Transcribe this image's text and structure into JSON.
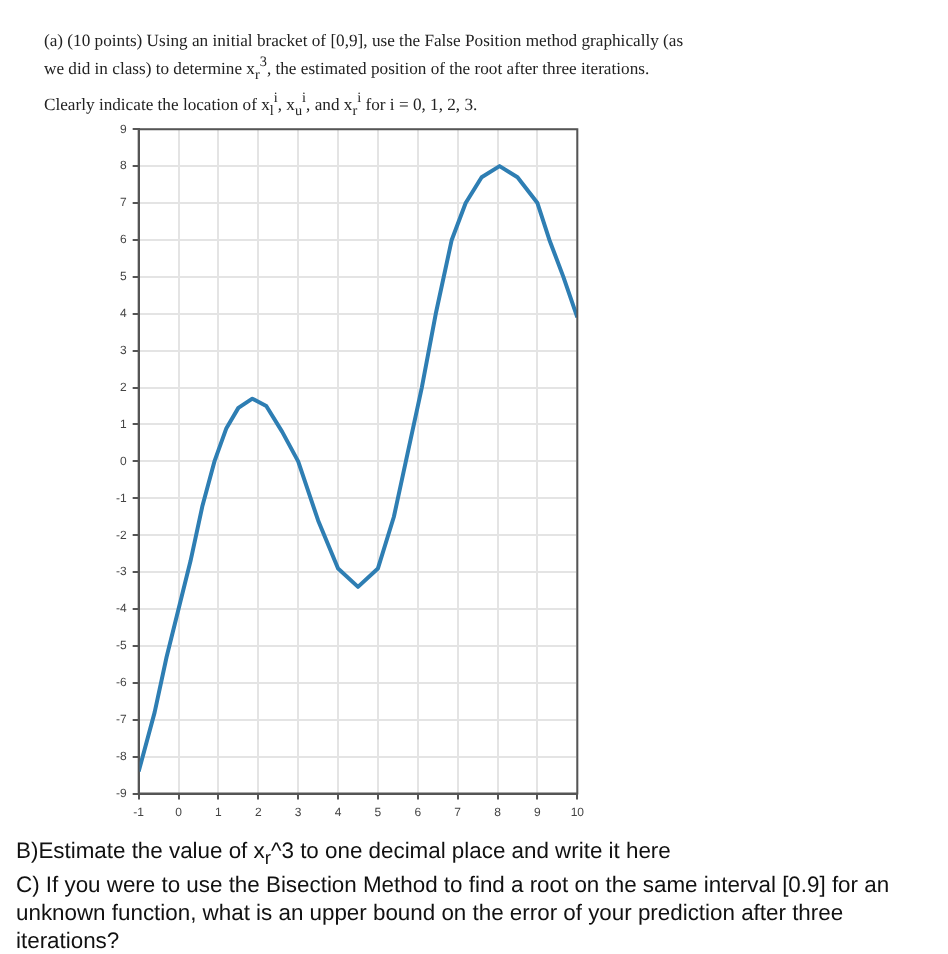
{
  "chart_data": {
    "type": "line",
    "title": "(a) (10 points) Using an initial bracket of [0,9], use the False Position method graphically (as we did in class) to determine x$_{r}$$^{3}$, the estimated position of the root after three iterations. Clearly indicate the location of x$_{l}$$^{i}$, x$_{u}$$^{i}$, and x$_{r}$$^{i}$ for i = 0, 1, 2, 3.",
    "x": [
      -1,
      -0.6,
      -0.3,
      0,
      0.3,
      0.6,
      0.9,
      1.2,
      1.5,
      1.85,
      2.2,
      2.6,
      3,
      3.5,
      4,
      4.5,
      5,
      5.4,
      5.7,
      6.1,
      6.45,
      6.85,
      7.2,
      7.6,
      8.05,
      8.5,
      9,
      9.3,
      9.65,
      10
    ],
    "series": [
      {
        "color": "#2e7eb3",
        "values": [
          -8.4,
          -6.8,
          -5.3,
          -4,
          -2.7,
          -1.2,
          0,
          0.9,
          1.45,
          1.7,
          1.5,
          0.8,
          0,
          -1.6,
          -2.9,
          -3.4,
          -2.9,
          -1.5,
          0,
          2,
          4,
          6,
          7,
          7.7,
          8,
          7.7,
          7,
          6,
          5,
          3.9
        ]
      }
    ],
    "xlim": [
      -1,
      10
    ],
    "xticks": [
      -1,
      0,
      1,
      2,
      3,
      4,
      5,
      6,
      7,
      8,
      9,
      10
    ],
    "ylim": [
      -9,
      9
    ],
    "yticks": [
      -9,
      -8,
      -7,
      -6,
      -5,
      -4,
      -3,
      -2,
      -1,
      0,
      1,
      2,
      3,
      4,
      5,
      6,
      7,
      8,
      9
    ],
    "grid": true,
    "legend": false,
    "marker": "none",
    "line_style": "solid",
    "annotations": [
      "B)Estimate the value of x$_{r}$^3 to one decimal place and write it here",
      "C) If you were to use the Bisection Method to find a root on the same interval [0.9] for an unknown function, what is an upper bound on the error of your prediction after three iterations?"
    ]
  }
}
